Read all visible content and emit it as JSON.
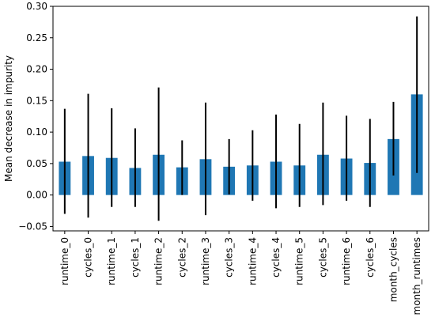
{
  "chart_data": {
    "type": "bar",
    "title": "",
    "xlabel": "",
    "ylabel": "Mean decrease in impurity",
    "ylim": [
      -0.057,
      0.3
    ],
    "yticks": [
      -0.05,
      0.0,
      0.05,
      0.1,
      0.15,
      0.2,
      0.25,
      0.3
    ],
    "ytick_labels": [
      "−0.05",
      "0.00",
      "0.05",
      "0.10",
      "0.15",
      "0.20",
      "0.25",
      "0.30"
    ],
    "grid": false,
    "legend": "none",
    "bar_color": "#1f77b4",
    "error_color": "#000000",
    "categories": [
      "runtime_0",
      "cycles_0",
      "runtime_1",
      "cycles_1",
      "runtime_2",
      "cycles_2",
      "runtime_3",
      "cycles_3",
      "runtime_4",
      "cycles_4",
      "runtime_5",
      "cycles_5",
      "runtime_6",
      "cycles_6",
      "month_cycles",
      "month_runtimes"
    ],
    "values": [
      0.053,
      0.062,
      0.059,
      0.043,
      0.064,
      0.044,
      0.057,
      0.045,
      0.047,
      0.053,
      0.047,
      0.064,
      0.058,
      0.051,
      0.089,
      0.16
    ],
    "error_low": [
      -0.03,
      -0.036,
      -0.019,
      -0.019,
      -0.041,
      0.0,
      -0.032,
      0.001,
      -0.009,
      -0.021,
      -0.019,
      -0.016,
      -0.009,
      -0.019,
      0.031,
      0.035
    ],
    "error_high": [
      0.137,
      0.161,
      0.138,
      0.106,
      0.171,
      0.087,
      0.147,
      0.089,
      0.103,
      0.128,
      0.113,
      0.147,
      0.126,
      0.121,
      0.148,
      0.284
    ]
  }
}
